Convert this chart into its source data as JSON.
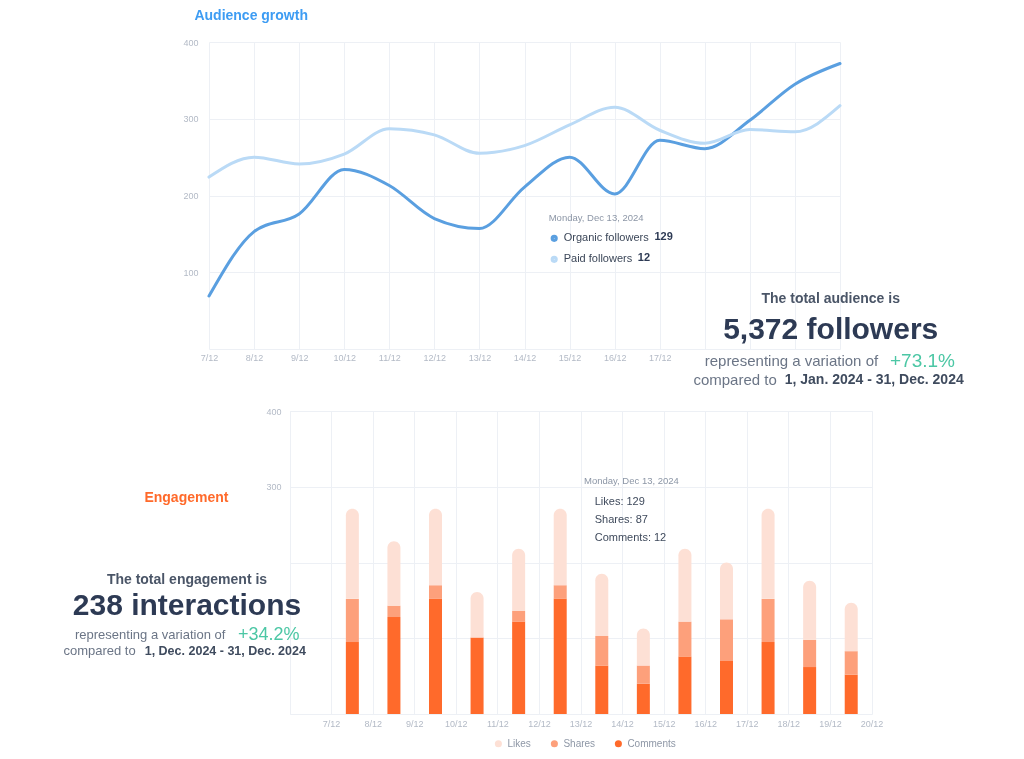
{
  "chart_data": [
    {
      "type": "line",
      "title": "Audience growth",
      "categories": [
        "7/12",
        "8/12",
        "9/12",
        "10/12",
        "11/12",
        "12/12",
        "13/12",
        "14/12",
        "15/12",
        "16/12",
        "17/12",
        null,
        null,
        null,
        null
      ],
      "series": [
        {
          "name": "Organic followers",
          "color": "#5a9fe0",
          "values": [
            69,
            153,
            176,
            234,
            213,
            170,
            157,
            211,
            250,
            202,
            272,
            261,
            298,
            345,
            372
          ]
        },
        {
          "name": "Paid followers",
          "color": "#badaf6",
          "values": [
            224,
            250,
            241,
            254,
            287,
            279,
            255,
            265,
            292,
            315,
            285,
            268,
            286,
            283,
            317
          ]
        }
      ],
      "ylim": [
        0,
        400
      ],
      "yticks": [
        100,
        200,
        300,
        400
      ],
      "grid": true,
      "legend": "right",
      "legend_title": "Monday, Dec 13, 2024",
      "annotations": [
        "129",
        "12",
        "The total audience is",
        "5,372 followers",
        "representing a variation of",
        "+73.1%",
        "compared to",
        "1, Jan. 2024 - 31, Dec. 2024"
      ]
    },
    {
      "type": "bar",
      "title": "Engagement",
      "categories": [
        "7/12",
        "8/12",
        "9/12",
        "10/12",
        "11/12",
        "12/12",
        "13/12",
        "14/12",
        "15/12",
        "16/12",
        "17/12",
        "18/12",
        "19/12",
        "20/12"
      ],
      "stacked": true,
      "series": [
        {
          "name": "Comments",
          "color": "#ff6a2b",
          "values": [
            null,
            95,
            128,
            152,
            101,
            122,
            152,
            64,
            40,
            76,
            70,
            95,
            62,
            52
          ]
        },
        {
          "name": "Shares",
          "color": "#fda07b",
          "values": [
            null,
            57,
            15,
            18,
            0,
            14,
            18,
            39,
            24,
            46,
            55,
            57,
            36,
            31
          ]
        },
        {
          "name": "Likes",
          "color": "#fde0d5",
          "values": [
            null,
            119,
            85,
            101,
            60,
            82,
            101,
            82,
            49,
            96,
            75,
            119,
            78,
            64
          ]
        }
      ],
      "ylim": [
        0,
        400
      ],
      "yticks": [
        {
          "value": 100,
          "label": null
        },
        {
          "value": 200,
          "label": null
        },
        300,
        400
      ],
      "grid": true,
      "legend": "bottom",
      "annotations": [
        "Monday, Dec 13, 2024",
        "Likes: 129",
        "Shares: 87",
        "Comments: 12",
        "The total engagement is",
        "238 interactions",
        "representing a variation of",
        "+34.2%",
        "compared to",
        "1, Dec. 2024 - 31, Dec. 2024"
      ]
    }
  ]
}
